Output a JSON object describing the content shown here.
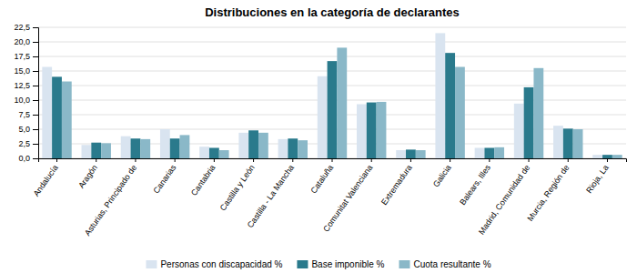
{
  "chart_data": {
    "type": "bar",
    "title": "Distribuciones en la categoría de declarantes",
    "categories": [
      "Andalucía",
      "Aragón",
      "Asturias, Principado de",
      "Canarias",
      "Cantabria",
      "Castilla y León",
      "Castilla - La Mancha",
      "Cataluña",
      "Comunitat Valenciana",
      "Extremadura",
      "Galicia",
      "Balears, Illes",
      "Madrid, Comunidad de",
      "Murcia, Región de",
      "Rioja, La"
    ],
    "series": [
      {
        "name": "Personas con discapacidad %",
        "color": "#d9e4f0",
        "values": [
          15.7,
          2.3,
          3.8,
          5.0,
          2.0,
          4.4,
          3.3,
          14.1,
          9.3,
          1.4,
          21.5,
          1.8,
          9.4,
          5.6,
          0.6
        ]
      },
      {
        "name": "Base imponible %",
        "color": "#2a7a8c",
        "values": [
          14.0,
          2.7,
          3.4,
          3.4,
          1.8,
          4.8,
          3.4,
          16.7,
          9.6,
          1.5,
          18.1,
          1.8,
          12.2,
          5.1,
          0.6
        ]
      },
      {
        "name": "Cuota resultante %",
        "color": "#8ab8c8",
        "values": [
          13.2,
          2.6,
          3.3,
          4.0,
          1.4,
          4.4,
          3.1,
          19.0,
          9.7,
          1.4,
          15.7,
          1.9,
          15.5,
          5.0,
          0.6
        ]
      }
    ],
    "ylim": [
      0,
      22.5
    ],
    "yticks": [
      {
        "value": 0.0,
        "label": "0,0"
      },
      {
        "value": 2.5,
        "label": "2,5"
      },
      {
        "value": 5.0,
        "label": "5,0"
      },
      {
        "value": 7.5,
        "label": "7,5"
      },
      {
        "value": 10.0,
        "label": "10,0"
      },
      {
        "value": 12.5,
        "label": "12,5"
      },
      {
        "value": 15.0,
        "label": "15,0"
      },
      {
        "value": 17.5,
        "label": "17,5"
      },
      {
        "value": 20.0,
        "label": "20,0"
      },
      {
        "value": 22.5,
        "label": "22,5"
      }
    ],
    "grid": true
  }
}
